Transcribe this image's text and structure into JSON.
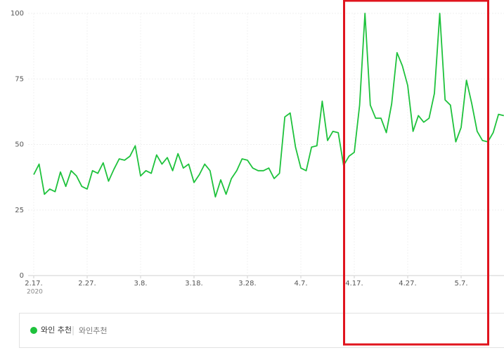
{
  "chart_data": {
    "type": "line",
    "categories": [
      "2.17.",
      null,
      null,
      null,
      null,
      null,
      null,
      null,
      null,
      null,
      "2.27.",
      null,
      null,
      null,
      null,
      null,
      null,
      null,
      null,
      null,
      "3.8.",
      null,
      null,
      null,
      null,
      null,
      null,
      null,
      null,
      null,
      "3.18.",
      null,
      null,
      null,
      null,
      null,
      null,
      null,
      null,
      null,
      "3.28.",
      null,
      null,
      null,
      null,
      null,
      null,
      null,
      null,
      null,
      "4.7.",
      null,
      null,
      null,
      null,
      null,
      null,
      null,
      null,
      null,
      "4.17.",
      null,
      null,
      null,
      null,
      null,
      null,
      null,
      null,
      null,
      "4.27.",
      null,
      null,
      null,
      null,
      null,
      null,
      null,
      null,
      null,
      "5.7.",
      null,
      null,
      null,
      null,
      null,
      null,
      null,
      null
    ],
    "year_label": "2020",
    "series": [
      {
        "name": "와인 추천",
        "keyword": "와인추천",
        "color": "#1ec23c",
        "values": [
          38.5,
          42.5,
          31,
          33,
          32,
          39.5,
          34,
          40,
          38,
          34,
          33,
          40,
          39,
          43,
          36,
          40.5,
          44.5,
          44,
          45.5,
          49.5,
          38,
          40,
          39,
          46,
          42.5,
          45,
          40,
          46.5,
          41,
          42.5,
          35.5,
          38.5,
          42.5,
          40,
          30,
          36.5,
          31,
          37,
          40,
          44.5,
          44,
          41,
          40,
          40,
          41,
          37,
          39,
          60.5,
          62,
          49,
          41,
          40,
          49,
          49.5,
          66.5,
          51.5,
          55,
          54.5,
          42,
          45.5,
          47,
          65,
          100,
          65,
          60,
          60,
          54.5,
          65.5,
          85,
          80,
          72.5,
          55,
          61,
          58.5,
          60,
          69.5,
          100,
          67,
          65,
          51,
          56.5,
          74.5,
          65.5,
          55,
          51.5,
          51,
          54.5,
          61.5,
          61
        ]
      }
    ],
    "ylim": [
      0,
      100
    ],
    "yticks": [
      0,
      25,
      50,
      75,
      100
    ],
    "grid": true
  }
}
